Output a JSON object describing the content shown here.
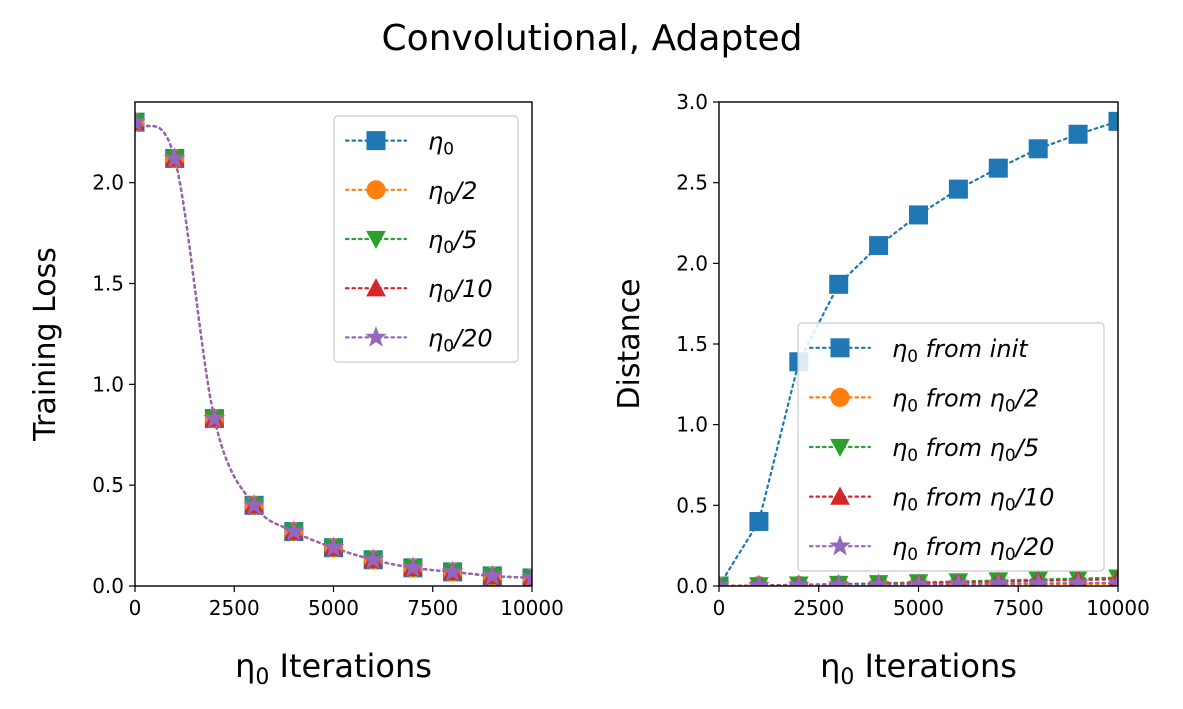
{
  "figure": {
    "title": "Convolutional, Adapted"
  },
  "chart_data": [
    {
      "type": "line",
      "xlabel": "η0 Iterations",
      "ylabel": "Training Loss",
      "xlim": [
        0,
        10000
      ],
      "ylim": [
        0,
        2.4
      ],
      "xticks": [
        0,
        2500,
        5000,
        7500,
        10000
      ],
      "xtick_labels": [
        "0",
        "2500",
        "5000",
        "7500",
        "10000"
      ],
      "yticks": [
        0.0,
        0.5,
        1.0,
        1.5,
        2.0
      ],
      "ytick_labels": [
        "0.0",
        "0.5",
        "1.0",
        "1.5",
        "2.0"
      ],
      "grid": false,
      "legend_position": "upper right",
      "x": [
        0,
        1000,
        2000,
        3000,
        4000,
        5000,
        6000,
        7000,
        8000,
        9000,
        10000
      ],
      "series": [
        {
          "name": "η0",
          "legend": [
            "η",
            "0",
            ""
          ],
          "color": "#1f77b4",
          "marker": "square",
          "values": [
            2.3,
            2.12,
            0.83,
            0.4,
            0.27,
            0.19,
            0.13,
            0.09,
            0.07,
            0.05,
            0.04
          ]
        },
        {
          "name": "η0/2",
          "legend": [
            "η",
            "0",
            "/2"
          ],
          "color": "#ff7f0e",
          "marker": "circle",
          "values": [
            2.3,
            2.12,
            0.83,
            0.4,
            0.27,
            0.19,
            0.13,
            0.09,
            0.07,
            0.05,
            0.04
          ]
        },
        {
          "name": "η0/5",
          "legend": [
            "η",
            "0",
            "/5"
          ],
          "color": "#2ca02c",
          "marker": "triangle-down",
          "values": [
            2.3,
            2.12,
            0.83,
            0.4,
            0.27,
            0.19,
            0.13,
            0.09,
            0.07,
            0.05,
            0.04
          ]
        },
        {
          "name": "η0/10",
          "legend": [
            "η",
            "0",
            "/10"
          ],
          "color": "#d62728",
          "marker": "triangle-up",
          "values": [
            2.3,
            2.12,
            0.83,
            0.4,
            0.27,
            0.19,
            0.13,
            0.09,
            0.07,
            0.05,
            0.04
          ]
        },
        {
          "name": "η0/20",
          "legend": [
            "η",
            "0",
            "/20"
          ],
          "color": "#9467bd",
          "marker": "star",
          "values": [
            2.3,
            2.12,
            0.83,
            0.4,
            0.27,
            0.19,
            0.13,
            0.09,
            0.07,
            0.05,
            0.04
          ]
        }
      ]
    },
    {
      "type": "line",
      "xlabel": "η0 Iterations",
      "ylabel": "Distance",
      "xlim": [
        0,
        10000
      ],
      "ylim": [
        0,
        3.0
      ],
      "xticks": [
        0,
        2500,
        5000,
        7500,
        10000
      ],
      "xtick_labels": [
        "0",
        "2500",
        "5000",
        "7500",
        "10000"
      ],
      "yticks": [
        0.0,
        0.5,
        1.0,
        1.5,
        2.0,
        2.5,
        3.0
      ],
      "ytick_labels": [
        "0.0",
        "0.5",
        "1.0",
        "1.5",
        "2.0",
        "2.5",
        "3.0"
      ],
      "grid": false,
      "legend_position": "lower right",
      "x": [
        0,
        1000,
        2000,
        3000,
        4000,
        5000,
        6000,
        7000,
        8000,
        9000,
        10000
      ],
      "series": [
        {
          "name": "η0 from init",
          "legend": [
            "η",
            "0",
            " from init"
          ],
          "color": "#1f77b4",
          "marker": "square",
          "values": [
            0.0,
            0.4,
            1.39,
            1.87,
            2.11,
            2.3,
            2.46,
            2.59,
            2.71,
            2.8,
            2.88
          ]
        },
        {
          "name": "η0 from η0/2",
          "legend": [
            "η",
            "0",
            " from η",
            "0",
            "/2"
          ],
          "color": "#ff7f0e",
          "marker": "circle",
          "values": [
            0.0,
            0.003,
            0.005,
            0.006,
            0.007,
            0.008,
            0.009,
            0.01,
            0.011,
            0.012,
            0.013
          ]
        },
        {
          "name": "η0 from η0/5",
          "legend": [
            "η",
            "0",
            " from η",
            "0",
            "/5"
          ],
          "color": "#2ca02c",
          "marker": "triangle-down",
          "values": [
            0.0,
            0.004,
            0.008,
            0.012,
            0.017,
            0.022,
            0.028,
            0.034,
            0.04,
            0.046,
            0.052
          ]
        },
        {
          "name": "η0 from η0/10",
          "legend": [
            "η",
            "0",
            " from η",
            "0",
            "/10"
          ],
          "color": "#d62728",
          "marker": "triangle-up",
          "values": [
            0.0,
            0.003,
            0.006,
            0.009,
            0.013,
            0.017,
            0.022,
            0.027,
            0.032,
            0.037,
            0.042
          ]
        },
        {
          "name": "η0 from η0/20",
          "legend": [
            "η",
            "0",
            " from η",
            "0",
            "/20"
          ],
          "color": "#9467bd",
          "marker": "star",
          "values": [
            0.0,
            0.002,
            0.004,
            0.006,
            0.008,
            0.01,
            0.012,
            0.014,
            0.016,
            0.018,
            0.02
          ]
        }
      ]
    }
  ]
}
